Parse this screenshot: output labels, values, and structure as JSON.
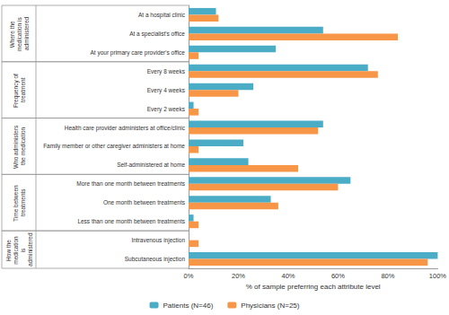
{
  "chart_data": {
    "type": "bar",
    "orientation": "horizontal",
    "categories": [
      "At a hospital clinic",
      "At a specialist's office",
      "At your primary care provider's office",
      "Every 8 weeks",
      "Every 4 weeks",
      "Every 2 weeks",
      "Health care provider administers at office/clinic",
      "Family member or other caregiver administers at home",
      "Self-administered at home",
      "More than one month between treatments",
      "One month between treatments",
      "Less than one month between treatments",
      "Intravenous injection",
      "Subcutaneous injection"
    ],
    "groups": [
      {
        "name": "Where the medication is administered",
        "categories": [
          "At a hospital clinic",
          "At a specialist's office",
          "At your primary care provider's office"
        ]
      },
      {
        "name": "Frequency of treatment",
        "categories": [
          "Every 8 weeks",
          "Every 4 weeks",
          "Every 2 weeks"
        ]
      },
      {
        "name": "Who administers the medication",
        "categories": [
          "Health care provider administers at office/clinic",
          "Family member or other caregiver administers at home",
          "Self-administered at home"
        ]
      },
      {
        "name": "Time between treatments",
        "categories": [
          "More than one month between treatments",
          "One month between treatments",
          "Less than one month between treatments"
        ]
      },
      {
        "name": "How the medication is administered",
        "categories": [
          "Intravenous injection",
          "Subcutaneous injection"
        ]
      }
    ],
    "series": [
      {
        "name": "Patients (N=46)",
        "color": "#4bacc6",
        "values": [
          11,
          54,
          35,
          72,
          26,
          2,
          54,
          22,
          24,
          65,
          33,
          2,
          0,
          100
        ]
      },
      {
        "name": "Physicians (N=25)",
        "color": "#f79646",
        "values": [
          12,
          84,
          4,
          76,
          20,
          4,
          52,
          4,
          44,
          60,
          36,
          4,
          4,
          96
        ]
      }
    ],
    "x_label": "% of sample preferring each attribute level",
    "xlim": [
      0,
      100
    ],
    "xticks": [
      {
        "value": 0,
        "label": "0%"
      },
      {
        "value": 20,
        "label": "20%"
      },
      {
        "value": 40,
        "label": "40%"
      },
      {
        "value": 60,
        "label": "60%"
      },
      {
        "value": 80,
        "label": "80%"
      },
      {
        "value": 100,
        "label": "100%"
      }
    ],
    "grid": false,
    "legend": "bottom",
    "data_labels": false
  }
}
